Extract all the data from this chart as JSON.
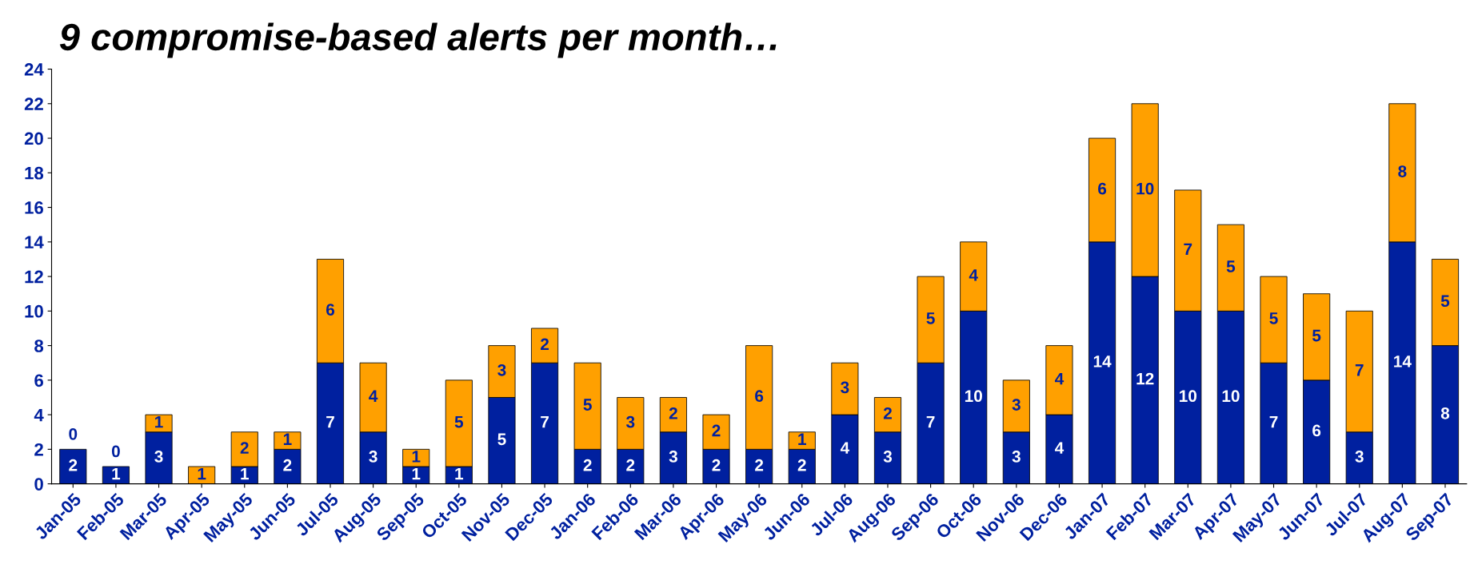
{
  "chart_data": {
    "type": "bar",
    "stacked": true,
    "title": "9 compromise-based alerts per month…",
    "categories": [
      "Jan-05",
      "Feb-05",
      "Mar-05",
      "Apr-05",
      "May-05",
      "Jun-05",
      "Jul-05",
      "Aug-05",
      "Sep-05",
      "Oct-05",
      "Nov-05",
      "Dec-05",
      "Jan-06",
      "Feb-06",
      "Mar-06",
      "Apr-06",
      "May-06",
      "Jun-06",
      "Jul-06",
      "Aug-06",
      "Sep-06",
      "Oct-06",
      "Nov-06",
      "Dec-06",
      "Jan-07",
      "Feb-07",
      "Mar-07",
      "Apr-07",
      "May-07",
      "Jun-07",
      "Jul-07",
      "Aug-07",
      "Sep-07"
    ],
    "series": [
      {
        "color": "#00209f",
        "values": [
          2,
          1,
          3,
          0,
          1,
          2,
          7,
          3,
          1,
          1,
          5,
          7,
          2,
          2,
          3,
          2,
          2,
          2,
          4,
          3,
          7,
          10,
          3,
          4,
          14,
          12,
          10,
          10,
          7,
          6,
          3,
          14,
          8
        ],
        "value_labels": [
          "2",
          "1",
          "3",
          null,
          "1",
          "2",
          "7",
          "3",
          "1",
          "1",
          "5",
          "7",
          "2",
          "2",
          "3",
          "2",
          "2",
          "2",
          "4",
          "3",
          "7",
          "10",
          "3",
          "4",
          "14",
          "12",
          "10",
          "10",
          "7",
          "6",
          "3",
          "14",
          "8"
        ]
      },
      {
        "color": "#ffa000",
        "values": [
          0,
          0,
          1,
          1,
          2,
          1,
          6,
          4,
          1,
          5,
          3,
          2,
          5,
          3,
          2,
          2,
          6,
          1,
          3,
          2,
          5,
          4,
          3,
          4,
          6,
          10,
          7,
          5,
          5,
          5,
          7,
          8,
          5
        ],
        "value_labels": [
          "0",
          "0",
          "1",
          "1",
          "2",
          "1",
          "6",
          "4",
          "1",
          "5",
          "3",
          "2",
          "5",
          "3",
          "2",
          "2",
          "6",
          "1",
          "3",
          "2",
          "5",
          "4",
          "3",
          "4",
          "6",
          "10",
          "7",
          "5",
          "5",
          "5",
          "7",
          "8",
          "5"
        ]
      }
    ],
    "ylim": [
      0,
      24
    ],
    "yticks": [
      0,
      2,
      4,
      6,
      8,
      10,
      12,
      14,
      16,
      18,
      20,
      22,
      24
    ],
    "grid": false,
    "legend": false
  }
}
